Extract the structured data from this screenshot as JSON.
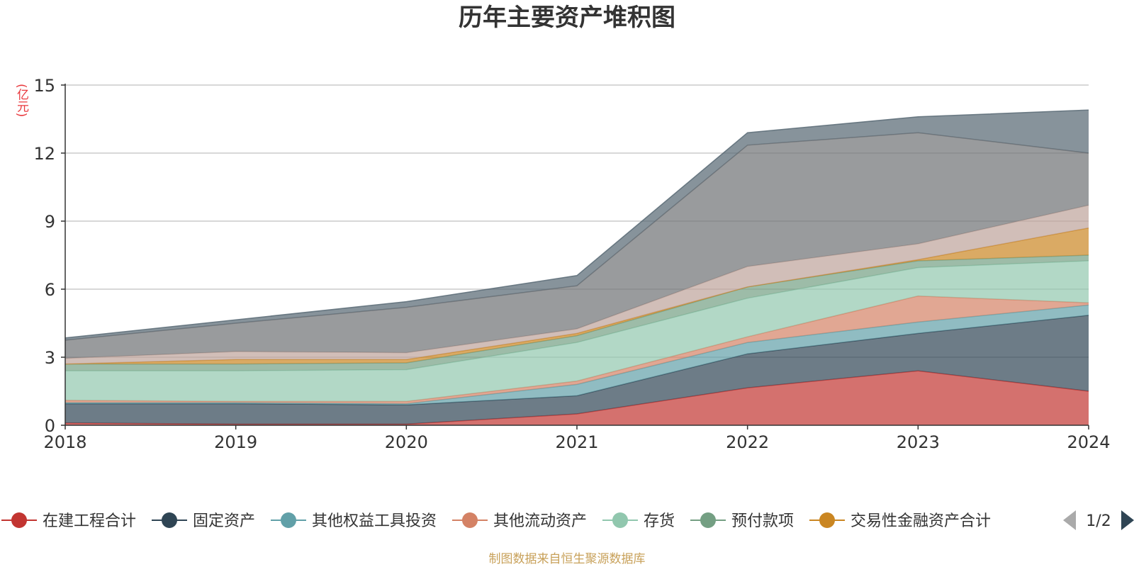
{
  "chart_data": {
    "type": "area",
    "stacked": true,
    "title": "历年主要资产堆积图",
    "unit_label": "(亿元)",
    "x": [
      "2018",
      "2019",
      "2020",
      "2021",
      "2022",
      "2023",
      "2024"
    ],
    "ylim": [
      0,
      15
    ],
    "yticks": [
      "0",
      "3",
      "6",
      "9",
      "12",
      "15"
    ],
    "grid": true,
    "legend_position": "bottom",
    "legend_page": "1/2",
    "series": [
      {
        "name": "在建工程合计",
        "color": "#c23531",
        "values": [
          0.1,
          0.05,
          0.05,
          0.5,
          1.65,
          2.4,
          1.5
        ]
      },
      {
        "name": "固定资产",
        "color": "#2f4554",
        "values": [
          0.85,
          0.9,
          0.85,
          0.8,
          1.5,
          1.65,
          3.35
        ]
      },
      {
        "name": "其他权益工具投资",
        "color": "#61a0a8",
        "values": [
          0.05,
          0.05,
          0.05,
          0.5,
          0.5,
          0.5,
          0.45
        ]
      },
      {
        "name": "其他流动资产",
        "color": "#d48265",
        "values": [
          0.1,
          0.05,
          0.1,
          0.15,
          0.25,
          1.15,
          0.1
        ]
      },
      {
        "name": "存货",
        "color": "#91c7ae",
        "values": [
          1.3,
          1.35,
          1.4,
          1.7,
          1.7,
          1.25,
          1.85
        ]
      },
      {
        "name": "预付款项",
        "color": "#749f83",
        "values": [
          0.3,
          0.3,
          0.3,
          0.3,
          0.5,
          0.3,
          0.25
        ]
      },
      {
        "name": "交易性金融资产合计",
        "color": "#ca8622",
        "values": [
          0.0,
          0.2,
          0.15,
          0.1,
          0.0,
          0.05,
          1.2
        ]
      },
      {
        "name": "",
        "color": "#bda29a",
        "values": [
          0.25,
          0.35,
          0.3,
          0.2,
          0.9,
          0.7,
          1.0
        ]
      },
      {
        "name": "",
        "color": "#6e7074",
        "values": [
          0.8,
          1.25,
          2.0,
          1.9,
          5.35,
          4.9,
          2.3
        ]
      },
      {
        "name": "",
        "color": "#546570",
        "values": [
          0.1,
          0.15,
          0.25,
          0.45,
          0.55,
          0.7,
          1.9
        ]
      }
    ]
  },
  "source_note": "制图数据来自恒生聚源数据库",
  "colors": {
    "axis": "#333333",
    "grid": "#cccccc",
    "title": "#333333",
    "unit": "#e8383d",
    "source": "#c8a15a",
    "pager": "#2f4554",
    "pager_disabled": "#aaaaaa"
  }
}
